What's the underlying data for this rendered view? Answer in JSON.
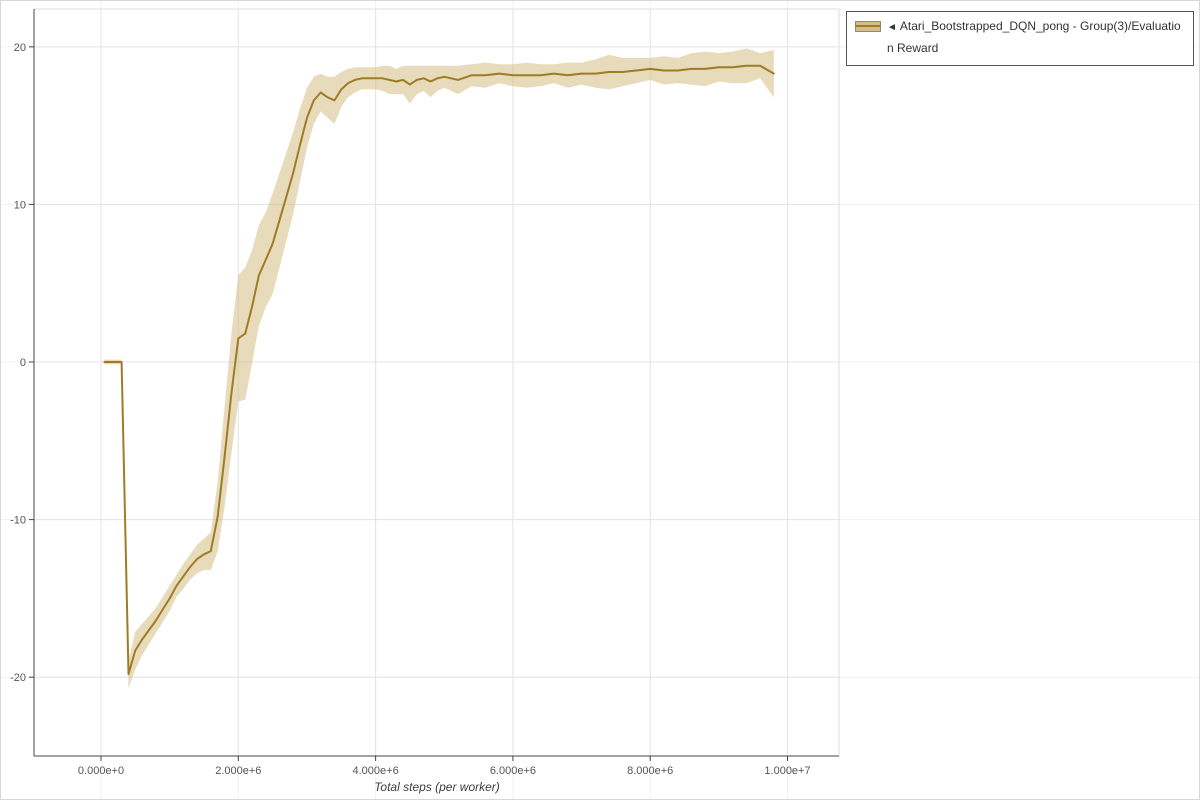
{
  "legend": {
    "marker": "◄",
    "lines": [
      "Atari_Bootstrapped_DQN_pong - Group(3)/Evaluatio",
      "n Reward"
    ],
    "full_label": "Atari_Bootstrapped_DQN_pong - Group(3)/Evaluation Reward"
  },
  "chart_data": {
    "type": "line",
    "title": "",
    "xlabel": "Total steps (per worker)",
    "ylabel": "",
    "xlim": [
      -976000,
      10750000
    ],
    "ylim": [
      -25,
      22.4
    ],
    "grid": true,
    "legend_position": "top-right-outside",
    "axis_color": "#444444",
    "grid_color": "#e4e4e4",
    "faint_grid_color": "#f1f1f1",
    "plot_border_color": "#dedede",
    "tick_label_color": "#555555",
    "x_ticks": {
      "values": [
        0,
        2000000,
        4000000,
        6000000,
        8000000,
        10000000
      ],
      "labels": [
        "0.000e+0",
        "2.000e+6",
        "4.000e+6",
        "6.000e+6",
        "8.000e+6",
        "1.000e+7"
      ]
    },
    "y_ticks": {
      "values": [
        -20,
        -10,
        0,
        10,
        20
      ],
      "labels": [
        "-20",
        "-10",
        "0",
        "10",
        "20"
      ]
    },
    "series": [
      {
        "name": "Atari_Bootstrapped_DQN_pong - Group(3)/Evaluation Reward",
        "line_color": "#9e7c24",
        "band_color": "#d5bd85",
        "band_opacity": 0.55,
        "x": [
          50000,
          300000,
          400000,
          500000,
          600000,
          700000,
          800000,
          900000,
          1000000,
          1100000,
          1200000,
          1300000,
          1400000,
          1500000,
          1600000,
          1700000,
          1800000,
          1900000,
          2000000,
          2100000,
          2200000,
          2300000,
          2400000,
          2500000,
          2600000,
          2700000,
          2800000,
          2900000,
          3000000,
          3100000,
          3200000,
          3300000,
          3400000,
          3500000,
          3600000,
          3700000,
          3800000,
          3900000,
          4000000,
          4100000,
          4200000,
          4300000,
          4400000,
          4500000,
          4600000,
          4700000,
          4800000,
          4900000,
          5000000,
          5200000,
          5400000,
          5600000,
          5800000,
          6000000,
          6200000,
          6400000,
          6600000,
          6800000,
          7000000,
          7200000,
          7400000,
          7600000,
          7800000,
          8000000,
          8200000,
          8400000,
          8600000,
          8800000,
          9000000,
          9200000,
          9400000,
          9600000,
          9800000
        ],
        "mean": [
          0,
          0,
          -19.8,
          -18.3,
          -17.6,
          -17,
          -16.4,
          -15.7,
          -15,
          -14.2,
          -13.6,
          -13,
          -12.5,
          -12.2,
          -12,
          -9.8,
          -6,
          -2,
          1.5,
          1.8,
          3.5,
          5.5,
          6.5,
          7.5,
          9,
          10.5,
          12,
          13.8,
          15.5,
          16.6,
          17.1,
          16.8,
          16.6,
          17.3,
          17.7,
          17.9,
          18,
          18,
          18,
          18,
          17.9,
          17.8,
          17.9,
          17.6,
          17.9,
          18,
          17.8,
          18,
          18.1,
          17.9,
          18.2,
          18.2,
          18.3,
          18.2,
          18.2,
          18.2,
          18.3,
          18.2,
          18.3,
          18.3,
          18.4,
          18.4,
          18.5,
          18.6,
          18.5,
          18.5,
          18.6,
          18.6,
          18.7,
          18.7,
          18.8,
          18.8,
          18.3
        ],
        "band_halfwidth": [
          0.15,
          0.15,
          0.9,
          1.2,
          1,
          0.9,
          0.8,
          0.8,
          0.8,
          0.7,
          0.8,
          0.8,
          0.9,
          1,
          1.2,
          2.2,
          3.2,
          3.8,
          4,
          4.2,
          3.6,
          3.2,
          3,
          3.2,
          3,
          2.8,
          2.6,
          2.3,
          1.9,
          1.5,
          1.2,
          1.3,
          1.5,
          1.1,
          0.9,
          0.8,
          0.7,
          0.7,
          0.7,
          0.8,
          0.9,
          0.8,
          0.9,
          1.2,
          0.9,
          0.8,
          1,
          0.8,
          0.7,
          0.9,
          0.7,
          0.8,
          0.6,
          0.7,
          0.8,
          0.7,
          0.6,
          0.8,
          0.7,
          0.9,
          1.1,
          0.9,
          0.8,
          0.7,
          0.9,
          0.8,
          1,
          1.1,
          0.9,
          1,
          1.1,
          0.8,
          1.5
        ]
      }
    ]
  }
}
